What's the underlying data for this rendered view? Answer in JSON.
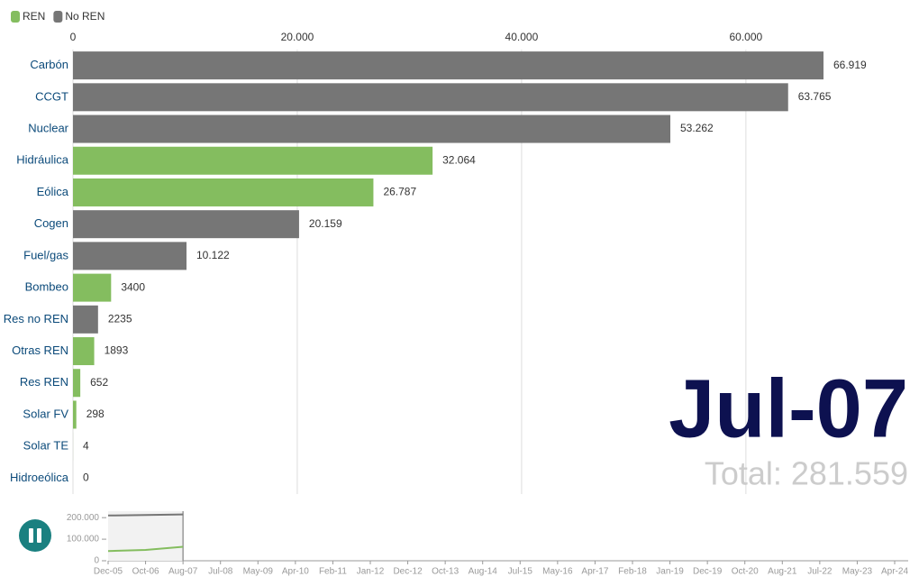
{
  "chart_data": [
    {
      "type": "bar",
      "orientation": "horizontal",
      "legend": [
        {
          "name": "REN",
          "color": "#84bd5f"
        },
        {
          "name": "No REN",
          "color": "#767676"
        }
      ],
      "categories": [
        "Carbón",
        "CCGT",
        "Nuclear",
        "Hidráulica",
        "Eólica",
        "Cogen",
        "Fuel/gas",
        "Bombeo",
        "Res no REN",
        "Otras REN",
        "Res REN",
        "Solar FV",
        "Solar TE",
        "Hidroeólica"
      ],
      "values": [
        66919,
        63765,
        53262,
        32064,
        26787,
        20159,
        10122,
        3400,
        2235,
        1893,
        652,
        298,
        4,
        0
      ],
      "value_labels": [
        "66.919",
        "63.765",
        "53.262",
        "32.064",
        "26.787",
        "20.159",
        "10.122",
        "3400",
        "2235",
        "1893",
        "652",
        "298",
        "4",
        "0"
      ],
      "colors": [
        "#767676",
        "#767676",
        "#767676",
        "#84bd5f",
        "#84bd5f",
        "#767676",
        "#767676",
        "#84bd5f",
        "#767676",
        "#84bd5f",
        "#84bd5f",
        "#84bd5f",
        "#84bd5f",
        "#84bd5f"
      ],
      "xlim": [
        0,
        67000
      ],
      "xticks": [
        0,
        {
          "value": 20000,
          "label": "20.000"
        },
        {
          "value": 40000,
          "label": "40.000"
        },
        {
          "value": 60000,
          "label": "60.000"
        }
      ],
      "grid": true,
      "date": "Jul-07",
      "total": "Total: 281.559"
    },
    {
      "type": "line",
      "categories": [
        "Dec-05",
        "Oct-06",
        "Aug-07",
        "Jul-08",
        "May-09",
        "Apr-10",
        "Feb-11",
        "Jan-12",
        "Dec-12",
        "Oct-13",
        "Aug-14",
        "Jul-15",
        "May-16",
        "Apr-17",
        "Feb-18",
        "Jan-19",
        "Dec-19",
        "Oct-20",
        "Aug-21",
        "Jul-22",
        "May-23",
        "Apr-24"
      ],
      "series": [
        {
          "name": "No REN",
          "color": "#767676",
          "values": [
            210000,
            212000,
            215000,
            null,
            null,
            null,
            null,
            null,
            null,
            null,
            null,
            null,
            null,
            null,
            null,
            null,
            null,
            null,
            null,
            null,
            null,
            null
          ]
        },
        {
          "name": "REN",
          "color": "#84bd5f",
          "values": [
            45000,
            50000,
            65000,
            null,
            null,
            null,
            null,
            null,
            null,
            null,
            null,
            null,
            null,
            null,
            null,
            null,
            null,
            null,
            null,
            null,
            null,
            null
          ]
        }
      ],
      "ylim": [
        0,
        230000
      ],
      "yticks": [
        0,
        {
          "value": 100000,
          "label": "100.000"
        },
        {
          "value": 200000,
          "label": "200.000"
        }
      ]
    }
  ]
}
